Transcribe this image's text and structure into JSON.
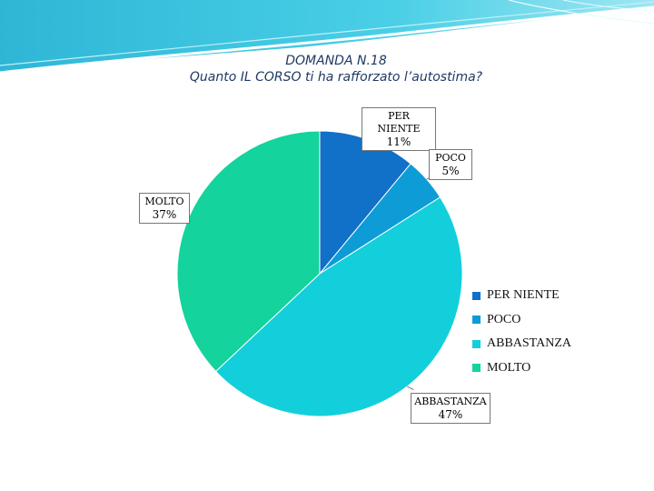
{
  "title": {
    "line1": "DOMANDA N.18",
    "line2": "Quanto IL CORSO ti ha rafforzato l’autostima?"
  },
  "chart_data": {
    "type": "pie",
    "categories": [
      "PER NIENTE",
      "POCO",
      "ABBASTANZA",
      "MOLTO"
    ],
    "values": [
      11,
      5,
      47,
      37
    ],
    "value_labels": [
      "11%",
      "5%",
      "47%",
      "37%"
    ],
    "colors": [
      "#1170c8",
      "#0e9cd6",
      "#12cfdb",
      "#14d39c"
    ],
    "legend_position": "right"
  },
  "theme": {
    "title_color": "#1f3864",
    "wave_color": "#35c6e0"
  }
}
